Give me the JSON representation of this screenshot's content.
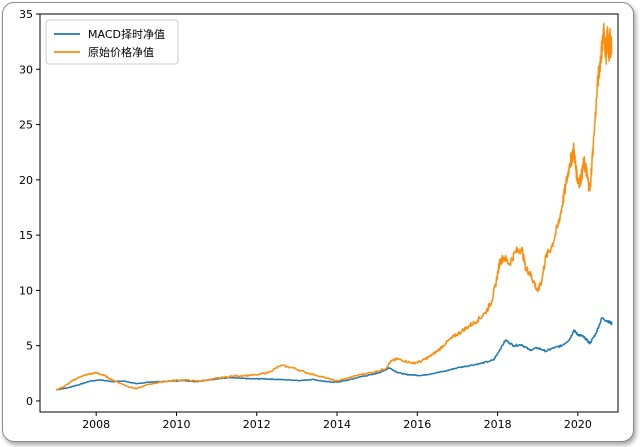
{
  "chart_data": {
    "type": "line",
    "xlabel": "",
    "ylabel": "",
    "xlim": [
      2006.6,
      2021.0
    ],
    "ylim": [
      -1.0,
      35.0
    ],
    "x_ticks": [
      {
        "value": 2008,
        "label": "2008"
      },
      {
        "value": 2010,
        "label": "2010"
      },
      {
        "value": 2012,
        "label": "2012"
      },
      {
        "value": 2014,
        "label": "2014"
      },
      {
        "value": 2016,
        "label": "2016"
      },
      {
        "value": 2018,
        "label": "2018"
      },
      {
        "value": 2020,
        "label": "2020"
      }
    ],
    "y_ticks": [
      {
        "value": 0,
        "label": "0"
      },
      {
        "value": 5,
        "label": "5"
      },
      {
        "value": 10,
        "label": "10"
      },
      {
        "value": 15,
        "label": "15"
      },
      {
        "value": 20,
        "label": "20"
      },
      {
        "value": 25,
        "label": "25"
      },
      {
        "value": 30,
        "label": "30"
      },
      {
        "value": 35,
        "label": "35"
      }
    ],
    "grid": false,
    "legend_position": "top-left",
    "series": [
      {
        "name": "MACD择时净值",
        "color": "#1f77b4",
        "x": [
          2007.0,
          2007.3,
          2007.6,
          2007.85,
          2008.1,
          2008.4,
          2008.7,
          2009.0,
          2009.3,
          2009.6,
          2009.9,
          2010.2,
          2010.5,
          2010.8,
          2011.0,
          2011.3,
          2011.6,
          2011.9,
          2012.2,
          2012.5,
          2012.8,
          2013.1,
          2013.4,
          2013.7,
          2014.0,
          2014.3,
          2014.6,
          2014.9,
          2015.15,
          2015.3,
          2015.5,
          2015.7,
          2015.9,
          2016.1,
          2016.4,
          2016.7,
          2017.0,
          2017.3,
          2017.6,
          2017.9,
          2018.0,
          2018.2,
          2018.4,
          2018.6,
          2018.8,
          2019.0,
          2019.2,
          2019.4,
          2019.6,
          2019.8,
          2019.9,
          2020.0,
          2020.1,
          2020.2,
          2020.3,
          2020.45,
          2020.6,
          2020.75,
          2020.85
        ],
        "y": [
          1.0,
          1.2,
          1.5,
          1.8,
          1.9,
          1.75,
          1.8,
          1.55,
          1.7,
          1.75,
          1.8,
          1.85,
          1.75,
          1.9,
          2.0,
          2.1,
          2.05,
          2.0,
          2.0,
          1.95,
          1.9,
          1.85,
          1.95,
          1.75,
          1.7,
          1.9,
          2.2,
          2.4,
          2.7,
          3.0,
          2.6,
          2.4,
          2.35,
          2.3,
          2.5,
          2.7,
          3.0,
          3.2,
          3.4,
          3.7,
          4.3,
          5.5,
          5.0,
          5.1,
          4.6,
          4.8,
          4.5,
          4.8,
          5.0,
          5.6,
          6.4,
          6.0,
          5.9,
          5.6,
          5.2,
          6.1,
          7.5,
          7.2,
          7.0
        ]
      },
      {
        "name": "原始价格净值",
        "color": "#ff8c0a",
        "x": [
          2007.0,
          2007.2,
          2007.4,
          2007.6,
          2007.8,
          2008.0,
          2008.2,
          2008.4,
          2008.6,
          2008.8,
          2009.0,
          2009.3,
          2009.6,
          2009.9,
          2010.2,
          2010.5,
          2010.8,
          2011.1,
          2011.4,
          2011.7,
          2012.0,
          2012.3,
          2012.6,
          2012.9,
          2013.2,
          2013.5,
          2013.8,
          2014.0,
          2014.3,
          2014.6,
          2014.9,
          2015.2,
          2015.35,
          2015.5,
          2015.7,
          2015.9,
          2016.1,
          2016.3,
          2016.5,
          2016.7,
          2016.9,
          2017.1,
          2017.3,
          2017.5,
          2017.7,
          2017.85,
          2017.95,
          2018.05,
          2018.15,
          2018.3,
          2018.45,
          2018.6,
          2018.7,
          2018.8,
          2018.9,
          2019.0,
          2019.1,
          2019.2,
          2019.35,
          2019.5,
          2019.6,
          2019.7,
          2019.8,
          2019.85,
          2019.9,
          2019.95,
          2020.0,
          2020.05,
          2020.1,
          2020.15,
          2020.2,
          2020.25,
          2020.3,
          2020.4,
          2020.5,
          2020.55,
          2020.6,
          2020.65,
          2020.7,
          2020.72,
          2020.74,
          2020.76,
          2020.78,
          2020.8,
          2020.82,
          2020.84
        ],
        "y": [
          1.0,
          1.3,
          1.8,
          2.2,
          2.4,
          2.55,
          2.3,
          1.9,
          1.6,
          1.3,
          1.1,
          1.5,
          1.7,
          1.85,
          1.9,
          1.8,
          1.9,
          2.1,
          2.25,
          2.3,
          2.35,
          2.6,
          3.2,
          3.0,
          2.6,
          2.3,
          2.0,
          1.8,
          2.1,
          2.4,
          2.6,
          2.9,
          3.6,
          3.8,
          3.6,
          3.4,
          3.6,
          4.0,
          4.5,
          5.2,
          5.8,
          6.3,
          6.8,
          7.3,
          8.0,
          9.0,
          10.5,
          12.5,
          13.0,
          12.4,
          13.5,
          13.8,
          12.0,
          11.6,
          10.8,
          9.9,
          10.9,
          13.0,
          14.0,
          15.8,
          17.5,
          19.5,
          21.5,
          22.0,
          22.8,
          21.0,
          20.0,
          19.8,
          20.5,
          21.6,
          21.0,
          20.0,
          19.0,
          24.0,
          29.0,
          30.5,
          32.0,
          33.5,
          31.0,
          32.5,
          33.0,
          32.0,
          31.5,
          32.8,
          31.8,
          32.4
        ]
      }
    ]
  }
}
